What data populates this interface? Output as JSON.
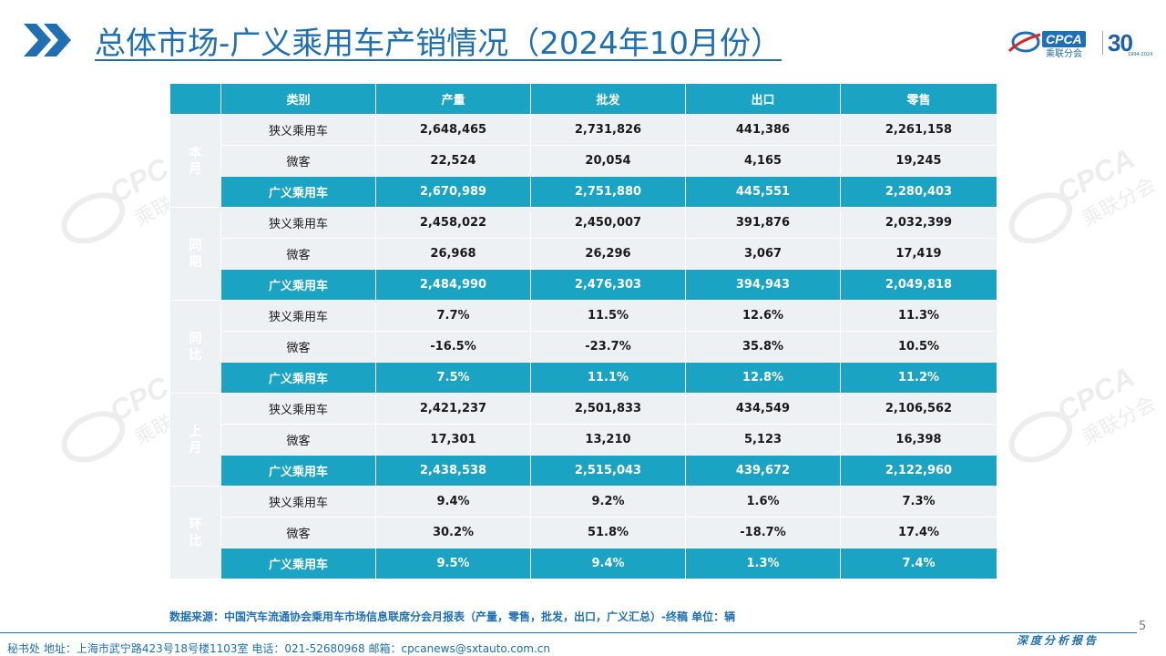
{
  "header": {
    "title": "总体市场-广义乘用车产销情况（2024年10月份）",
    "logo": {
      "brand": "CPCA",
      "brand_cn": "乘联分会",
      "anniversary": "30",
      "years": "1994-2024"
    }
  },
  "watermark": {
    "brand": "CPCA",
    "brand_cn": "乘联分会"
  },
  "table": {
    "columns": [
      "类别",
      "产量",
      "批发",
      "出口",
      "零售"
    ],
    "groups": [
      {
        "period": "本月",
        "rows": [
          {
            "category": "狭义乘用车",
            "values": [
              "2,648,465",
              "2,731,826",
              "441,386",
              "2,261,158"
            ]
          },
          {
            "category": "微客",
            "values": [
              "22,524",
              "20,054",
              "4,165",
              "19,245"
            ]
          },
          {
            "category": "广义乘用车",
            "values": [
              "2,670,989",
              "2,751,880",
              "445,551",
              "2,280,403"
            ]
          }
        ]
      },
      {
        "period": "同期",
        "rows": [
          {
            "category": "狭义乘用车",
            "values": [
              "2,458,022",
              "2,450,007",
              "391,876",
              "2,032,399"
            ]
          },
          {
            "category": "微客",
            "values": [
              "26,968",
              "26,296",
              "3,067",
              "17,419"
            ]
          },
          {
            "category": "广义乘用车",
            "values": [
              "2,484,990",
              "2,476,303",
              "394,943",
              "2,049,818"
            ]
          }
        ]
      },
      {
        "period": "同比",
        "rows": [
          {
            "category": "狭义乘用车",
            "values": [
              "7.7%",
              "11.5%",
              "12.6%",
              "11.3%"
            ]
          },
          {
            "category": "微客",
            "values": [
              "-16.5%",
              "-23.7%",
              "35.8%",
              "10.5%"
            ]
          },
          {
            "category": "广义乘用车",
            "values": [
              "7.5%",
              "11.1%",
              "12.8%",
              "11.2%"
            ]
          }
        ]
      },
      {
        "period": "上月",
        "rows": [
          {
            "category": "狭义乘用车",
            "values": [
              "2,421,237",
              "2,501,833",
              "434,549",
              "2,106,562"
            ]
          },
          {
            "category": "微客",
            "values": [
              "17,301",
              "13,210",
              "5,123",
              "16,398"
            ]
          },
          {
            "category": "广义乘用车",
            "values": [
              "2,438,538",
              "2,515,043",
              "439,672",
              "2,122,960"
            ]
          }
        ]
      },
      {
        "period": "环比",
        "rows": [
          {
            "category": "狭义乘用车",
            "values": [
              "9.4%",
              "9.2%",
              "1.6%",
              "7.3%"
            ]
          },
          {
            "category": "微客",
            "values": [
              "30.2%",
              "51.8%",
              "-18.7%",
              "17.4%"
            ]
          },
          {
            "category": "广义乘用车",
            "values": [
              "9.5%",
              "9.4%",
              "1.3%",
              "7.4%"
            ]
          }
        ]
      }
    ]
  },
  "footer": {
    "source": "数据来源：中国汽车流通协会乘用车市场信息联席分会月报表（产量，零售，批发，出口，广义汇总）-终稿    单位：辆",
    "page_number": "5",
    "report_label": "深度分析报告",
    "contact": "秘书处   地址：上海市武宁路423号18号楼1103室  电话：021-52680968   邮箱：cpcanews@sxtauto.com.cn"
  },
  "colors": {
    "teal": "#1aa3c2",
    "light_row": "#eef1f4",
    "blue": "#1f6fb2"
  }
}
